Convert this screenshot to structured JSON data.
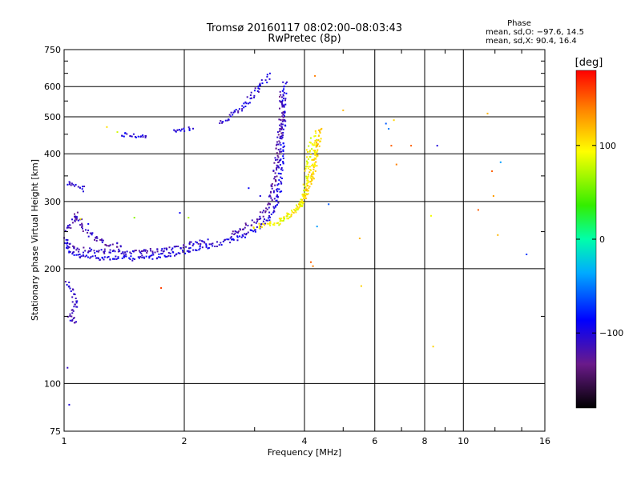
{
  "chart_data": {
    "type": "scatter",
    "title": "Tromsø 20160117 08:02:00–08:03:43",
    "subtitle": "RwPretec (8p)",
    "xlabel": "Frequency [MHz]",
    "ylabel": "Stationary phase Virtual Height [km]",
    "x_scale": "log",
    "y_scale": "log",
    "xlim": [
      1,
      16
    ],
    "ylim": [
      75,
      750
    ],
    "x_ticks": [
      "1",
      "2",
      "4",
      "6",
      "8",
      "10",
      "16"
    ],
    "y_ticks": [
      "75",
      "100",
      "200",
      "300",
      "400",
      "500",
      "600",
      "750"
    ],
    "grid": true,
    "stats": {
      "heading": "Phase",
      "line_o": "mean, sd,O: −97.6, 14.5",
      "line_x": "mean, sd,X:  90.4, 16.4"
    },
    "colorbar": {
      "label": "[deg]",
      "range": [
        -180,
        180
      ],
      "ticks": [
        "100",
        "0",
        "−100"
      ],
      "tick_values": [
        100,
        0,
        -100
      ]
    },
    "traces": [
      {
        "phase": -100,
        "points": [
          [
            1.0,
            232
          ],
          [
            1.03,
            222
          ],
          [
            1.06,
            217
          ],
          [
            1.1,
            215
          ],
          [
            1.2,
            214
          ],
          [
            1.35,
            213
          ],
          [
            1.5,
            213
          ],
          [
            1.7,
            215
          ],
          [
            1.9,
            219
          ],
          [
            2.1,
            224
          ],
          [
            2.4,
            231
          ],
          [
            2.7,
            240
          ],
          [
            3.0,
            253
          ],
          [
            3.2,
            265
          ],
          [
            3.35,
            285
          ],
          [
            3.45,
            320
          ],
          [
            3.5,
            380
          ],
          [
            3.55,
            500
          ],
          [
            3.58,
            620
          ]
        ]
      },
      {
        "phase": -110,
        "points": [
          [
            1.0,
            240
          ],
          [
            1.05,
            228
          ],
          [
            1.1,
            224
          ],
          [
            1.25,
            222
          ],
          [
            1.45,
            221
          ],
          [
            1.7,
            223
          ],
          [
            2.0,
            230
          ],
          [
            2.3,
            236
          ]
        ]
      },
      {
        "phase": -115,
        "points": [
          [
            1.0,
            250
          ],
          [
            1.04,
            262
          ],
          [
            1.08,
            278
          ],
          [
            1.1,
            260
          ],
          [
            1.15,
            248
          ],
          [
            1.22,
            238
          ],
          [
            1.3,
            232
          ],
          [
            1.4,
            229
          ]
        ]
      },
      {
        "phase": -120,
        "points": [
          [
            2.6,
            245
          ],
          [
            2.85,
            258
          ],
          [
            3.1,
            272
          ],
          [
            3.25,
            290
          ],
          [
            3.35,
            330
          ],
          [
            3.42,
            400
          ],
          [
            3.48,
            460
          ],
          [
            3.5,
            520
          ],
          [
            3.52,
            580
          ]
        ]
      },
      {
        "phase": -105,
        "points": [
          [
            1.02,
            335
          ],
          [
            1.06,
            330
          ],
          [
            1.1,
            330
          ],
          [
            1.12,
            320
          ]
        ]
      },
      {
        "phase": -110,
        "points": [
          [
            1.01,
            185
          ],
          [
            1.03,
            180
          ],
          [
            1.05,
            175
          ],
          [
            1.07,
            160
          ],
          [
            1.03,
            150
          ],
          [
            1.05,
            145
          ],
          [
            1.08,
            148
          ]
        ]
      },
      {
        "phase": -100,
        "points": [
          [
            1.4,
            450
          ],
          [
            1.48,
            446
          ],
          [
            1.55,
            445
          ],
          [
            1.62,
            447
          ]
        ]
      },
      {
        "phase": -100,
        "points": [
          [
            1.88,
            455
          ],
          [
            1.98,
            460
          ],
          [
            2.1,
            466
          ]
        ]
      },
      {
        "phase": -105,
        "points": [
          [
            2.45,
            482
          ],
          [
            2.6,
            500
          ],
          [
            2.8,
            530
          ],
          [
            3.0,
            575
          ],
          [
            3.15,
            615
          ],
          [
            3.28,
            645
          ]
        ]
      },
      {
        "phase": 100,
        "points": [
          [
            3.0,
            258
          ],
          [
            3.3,
            262
          ],
          [
            3.6,
            272
          ],
          [
            3.85,
            288
          ],
          [
            4.0,
            305
          ],
          [
            4.1,
            335
          ],
          [
            4.2,
            380
          ],
          [
            4.25,
            420
          ],
          [
            4.3,
            460
          ]
        ]
      },
      {
        "phase": 90,
        "points": [
          [
            3.4,
            262
          ],
          [
            3.7,
            280
          ],
          [
            3.95,
            300
          ],
          [
            4.05,
            345
          ],
          [
            4.1,
            400
          ],
          [
            4.15,
            440
          ]
        ]
      },
      {
        "phase": 110,
        "points": [
          [
            3.9,
            296
          ],
          [
            4.05,
            320
          ],
          [
            4.2,
            350
          ],
          [
            4.3,
            400
          ],
          [
            4.35,
            440
          ],
          [
            4.4,
            470
          ]
        ]
      }
    ],
    "scatter": [
      {
        "x": 1.28,
        "y": 470,
        "phase": 105
      },
      {
        "x": 1.36,
        "y": 456,
        "phase": 80
      },
      {
        "x": 1.75,
        "y": 178,
        "phase": 160
      },
      {
        "x": 4.15,
        "y": 208,
        "phase": 150
      },
      {
        "x": 4.2,
        "y": 203,
        "phase": 140
      },
      {
        "x": 4.25,
        "y": 640,
        "phase": 140
      },
      {
        "x": 4.6,
        "y": 295,
        "phase": -60
      },
      {
        "x": 4.3,
        "y": 258,
        "phase": -40
      },
      {
        "x": 5.0,
        "y": 520,
        "phase": 120
      },
      {
        "x": 5.5,
        "y": 240,
        "phase": 120
      },
      {
        "x": 5.55,
        "y": 180,
        "phase": 110
      },
      {
        "x": 6.4,
        "y": 480,
        "phase": -60
      },
      {
        "x": 6.5,
        "y": 465,
        "phase": -50
      },
      {
        "x": 6.6,
        "y": 420,
        "phase": 150
      },
      {
        "x": 6.7,
        "y": 490,
        "phase": 110
      },
      {
        "x": 6.8,
        "y": 375,
        "phase": 140
      },
      {
        "x": 7.4,
        "y": 420,
        "phase": 150
      },
      {
        "x": 8.3,
        "y": 275,
        "phase": 90
      },
      {
        "x": 8.4,
        "y": 125,
        "phase": 110
      },
      {
        "x": 8.6,
        "y": 420,
        "phase": -100
      },
      {
        "x": 10.9,
        "y": 285,
        "phase": 150
      },
      {
        "x": 11.5,
        "y": 510,
        "phase": 120
      },
      {
        "x": 11.8,
        "y": 360,
        "phase": 150
      },
      {
        "x": 11.9,
        "y": 310,
        "phase": 130
      },
      {
        "x": 12.2,
        "y": 245,
        "phase": 120
      },
      {
        "x": 12.4,
        "y": 380,
        "phase": -40
      },
      {
        "x": 14.4,
        "y": 218,
        "phase": -70
      },
      {
        "x": 1.1,
        "y": 270,
        "phase": 95
      },
      {
        "x": 1.15,
        "y": 262,
        "phase": -90
      },
      {
        "x": 1.5,
        "y": 272,
        "phase": 60
      },
      {
        "x": 1.95,
        "y": 280,
        "phase": -90
      },
      {
        "x": 2.05,
        "y": 272,
        "phase": 70
      },
      {
        "x": 2.9,
        "y": 325,
        "phase": -90
      },
      {
        "x": 3.1,
        "y": 310,
        "phase": -100
      },
      {
        "x": 1.03,
        "y": 88,
        "phase": -100
      },
      {
        "x": 1.02,
        "y": 110,
        "phase": -110
      }
    ]
  }
}
